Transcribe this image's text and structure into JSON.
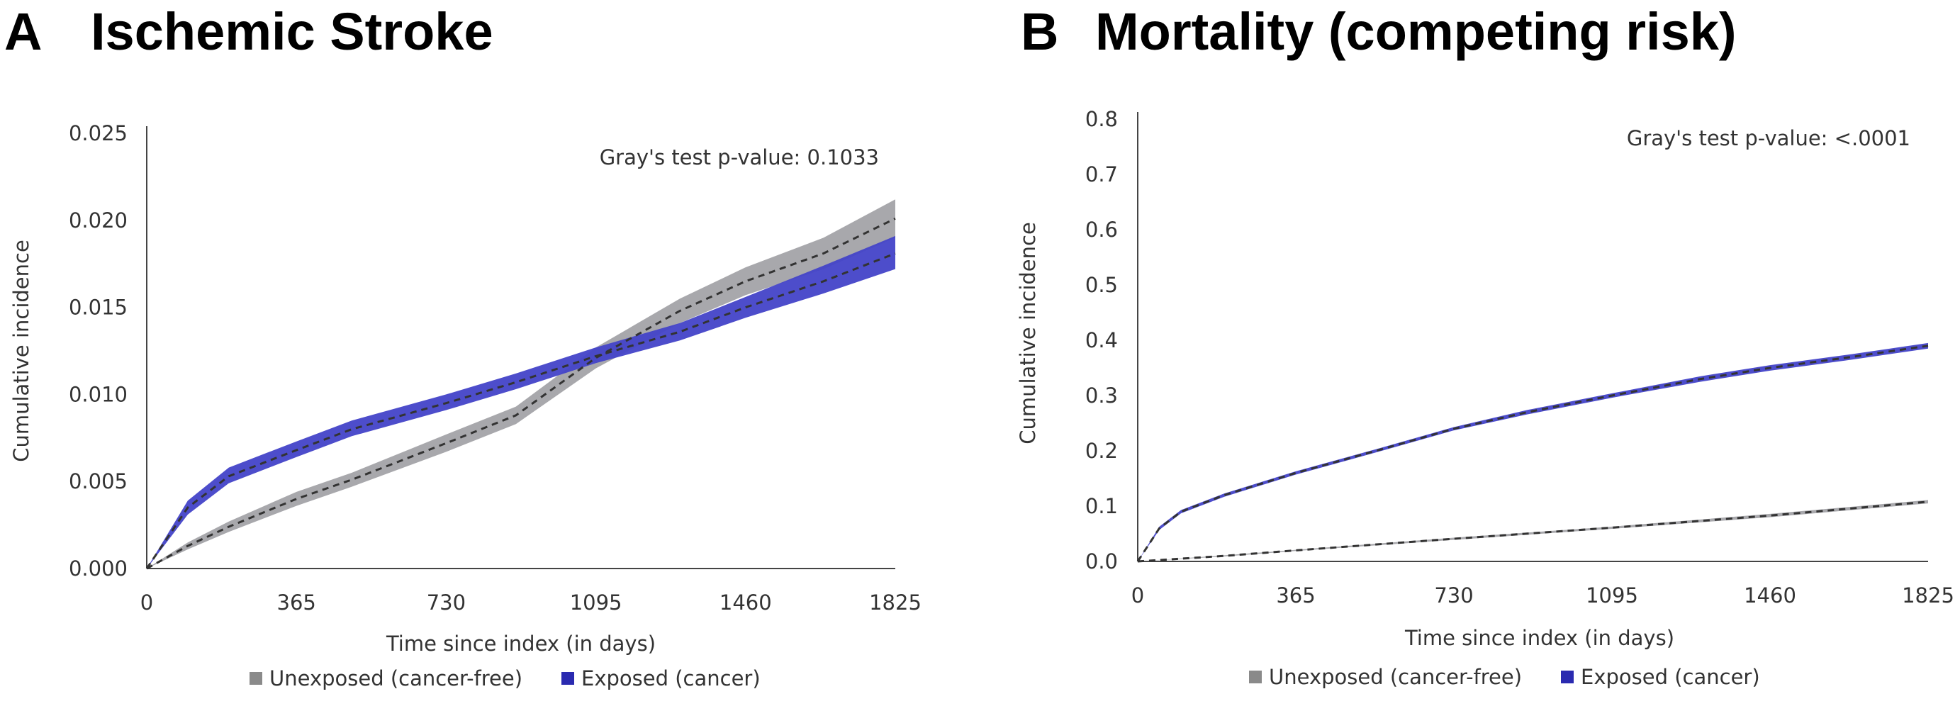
{
  "panels": [
    {
      "letter": "A",
      "title": "Ischemic Stroke"
    },
    {
      "letter": "B",
      "title": "Mortality (competing risk)"
    }
  ],
  "colors": {
    "unexposed_band": "#a3a3a8",
    "exposed_band": "#4343c8",
    "exposed_marker": "#2a2ab0",
    "unexposed_marker": "#8a8a8a",
    "axis": "#444444",
    "dashed": "#333333"
  },
  "chart_data": [
    {
      "type": "area",
      "panel": "A",
      "title": "Ischemic Stroke",
      "xlabel": "Time since index (in days)",
      "ylabel": "Cumulative incidence",
      "xlim": [
        0,
        1825
      ],
      "ylim": [
        0,
        0.025
      ],
      "xticks": [
        "0",
        "365",
        "730",
        "1095",
        "1460",
        "1825"
      ],
      "yticks": [
        "0.000",
        "0.005",
        "0.010",
        "0.015",
        "0.020",
        "0.025"
      ],
      "annotation": "Gray's test p-value: 0.1033",
      "legend": [
        "Unexposed (cancer-free)",
        "Exposed (cancer)"
      ],
      "legend_position": "bottom",
      "series": [
        {
          "name": "Unexposed (cancer-free)",
          "x": [
            0,
            100,
            200,
            365,
            500,
            730,
            900,
            1095,
            1300,
            1460,
            1650,
            1825
          ],
          "values": [
            0,
            0.0013,
            0.0024,
            0.004,
            0.0051,
            0.0072,
            0.0088,
            0.0121,
            0.0148,
            0.0165,
            0.0181,
            0.0201
          ],
          "lower": [
            0,
            0.0011,
            0.0021,
            0.0036,
            0.0047,
            0.0067,
            0.0083,
            0.0115,
            0.0141,
            0.0157,
            0.0172,
            0.019
          ],
          "upper": [
            0,
            0.0015,
            0.0027,
            0.0044,
            0.0055,
            0.0077,
            0.0093,
            0.0127,
            0.0155,
            0.0173,
            0.019,
            0.0212
          ]
        },
        {
          "name": "Exposed (cancer)",
          "x": [
            0,
            100,
            200,
            365,
            500,
            730,
            900,
            1095,
            1300,
            1460,
            1650,
            1825
          ],
          "values": [
            0,
            0.0035,
            0.0053,
            0.0068,
            0.008,
            0.0095,
            0.0107,
            0.0122,
            0.0136,
            0.015,
            0.0165,
            0.0181
          ],
          "lower": [
            0,
            0.0031,
            0.0049,
            0.0064,
            0.0076,
            0.0091,
            0.0103,
            0.0118,
            0.0131,
            0.0144,
            0.0158,
            0.0172
          ],
          "upper": [
            0,
            0.0039,
            0.0058,
            0.0073,
            0.0085,
            0.01,
            0.0112,
            0.0127,
            0.0141,
            0.0156,
            0.0174,
            0.0191
          ]
        }
      ]
    },
    {
      "type": "area",
      "panel": "B",
      "title": "Mortality (competing risk)",
      "xlabel": "Time since index (in days)",
      "ylabel": "Cumulative incidence",
      "xlim": [
        0,
        1825
      ],
      "ylim": [
        0,
        0.8
      ],
      "xticks": [
        "0",
        "365",
        "730",
        "1095",
        "1460",
        "1825"
      ],
      "yticks": [
        "0.0",
        "0.1",
        "0.2",
        "0.3",
        "0.4",
        "0.5",
        "0.6",
        "0.7",
        "0.8"
      ],
      "annotation": "Gray's test p-value: <.0001",
      "legend": [
        "Unexposed (cancer-free)",
        "Exposed (cancer)"
      ],
      "legend_position": "bottom",
      "series": [
        {
          "name": "Unexposed (cancer-free)",
          "x": [
            0,
            200,
            365,
            730,
            1095,
            1460,
            1825
          ],
          "values": [
            0,
            0.01,
            0.02,
            0.041,
            0.061,
            0.083,
            0.108
          ],
          "lower": [
            0,
            0.009,
            0.019,
            0.039,
            0.059,
            0.08,
            0.105
          ],
          "upper": [
            0,
            0.011,
            0.021,
            0.043,
            0.063,
            0.086,
            0.111
          ]
        },
        {
          "name": "Exposed (cancer)",
          "x": [
            0,
            50,
            100,
            200,
            365,
            550,
            730,
            900,
            1095,
            1300,
            1460,
            1650,
            1825
          ],
          "values": [
            0,
            0.06,
            0.09,
            0.12,
            0.16,
            0.2,
            0.24,
            0.27,
            0.3,
            0.33,
            0.35,
            0.37,
            0.39
          ],
          "lower": [
            0,
            0.057,
            0.087,
            0.117,
            0.157,
            0.197,
            0.237,
            0.266,
            0.296,
            0.325,
            0.345,
            0.365,
            0.385
          ],
          "upper": [
            0,
            0.063,
            0.093,
            0.123,
            0.163,
            0.203,
            0.243,
            0.274,
            0.304,
            0.335,
            0.355,
            0.375,
            0.395
          ]
        }
      ]
    }
  ]
}
